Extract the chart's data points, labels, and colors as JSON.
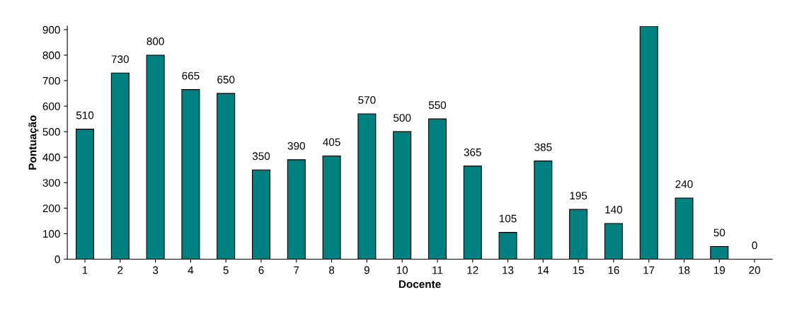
{
  "chart_data": {
    "type": "bar",
    "xlabel": "Docente",
    "ylabel": "Pontuação",
    "categories": [
      "1",
      "2",
      "3",
      "4",
      "5",
      "6",
      "7",
      "8",
      "9",
      "10",
      "11",
      "12",
      "13",
      "14",
      "15",
      "16",
      "17",
      "18",
      "19",
      "20"
    ],
    "values": [
      510,
      730,
      800,
      665,
      650,
      350,
      390,
      405,
      570,
      500,
      550,
      365,
      105,
      385,
      195,
      140,
      914,
      240,
      50,
      0
    ],
    "value_labels": [
      "510",
      "730",
      "800",
      "665",
      "650",
      "350",
      "390",
      "405",
      "570",
      "500",
      "550",
      "365",
      "105",
      "385",
      "195",
      "140",
      null,
      "240",
      "50",
      "0"
    ],
    "color": "#008080",
    "ylim": [
      0,
      914
    ],
    "yticks": [
      0,
      100,
      200,
      300,
      400,
      500,
      600,
      700,
      800,
      900
    ],
    "grid": false
  }
}
